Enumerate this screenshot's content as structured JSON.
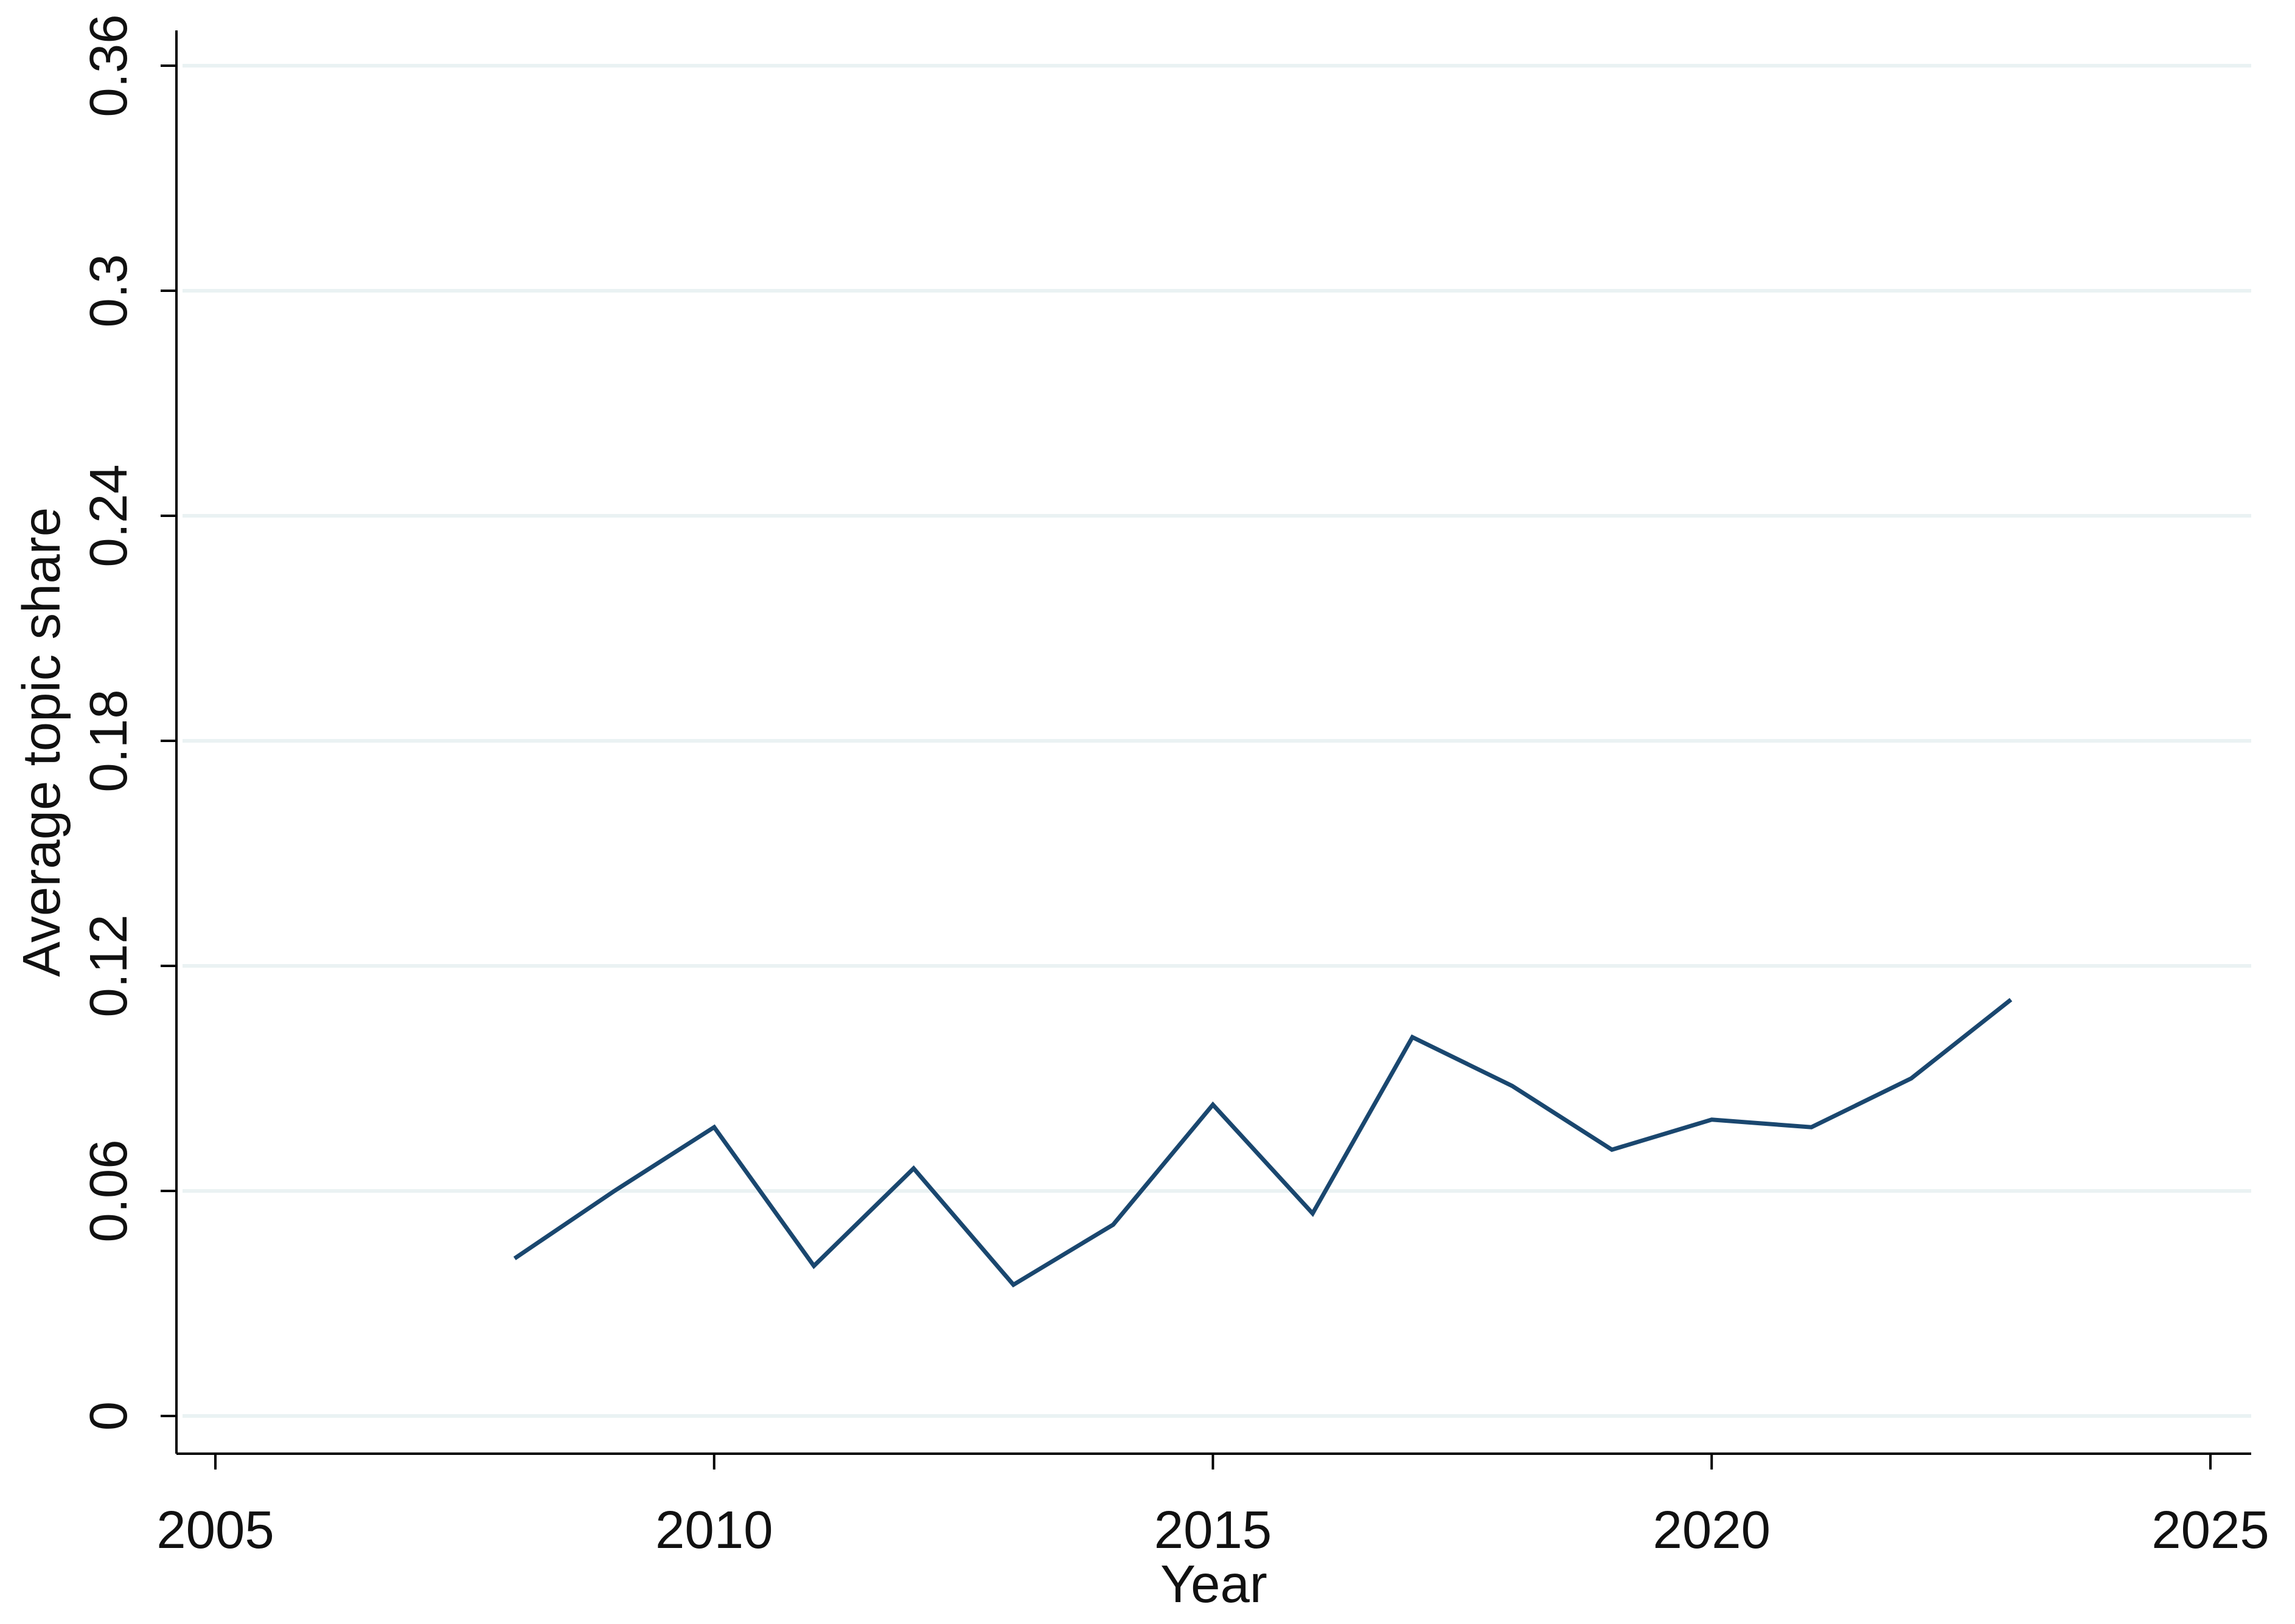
{
  "chart_data": {
    "type": "line",
    "title": "",
    "xlabel": "Year",
    "ylabel": "Average topic share",
    "xlim": [
      2005,
      2025
    ],
    "ylim": [
      0,
      0.36
    ],
    "x_ticks": [
      2005,
      2010,
      2015,
      2020,
      2025
    ],
    "y_ticks": [
      0,
      0.06,
      0.12,
      0.18,
      0.24,
      0.3,
      0.36
    ],
    "y_tick_labels": [
      "0",
      "0.06",
      "0.12",
      "0.18",
      "0.24",
      "0.3",
      "0.36"
    ],
    "grid": "horizontal",
    "legend": "none",
    "line_color": "#1a476f",
    "grid_color": "#eaf2f3",
    "series": [
      {
        "x": [
          2008,
          2009,
          2010,
          2011,
          2012,
          2013,
          2014,
          2015,
          2016,
          2017,
          2018,
          2019,
          2020,
          2021,
          2022,
          2023
        ],
        "values": [
          0.042,
          0.06,
          0.077,
          0.04,
          0.066,
          0.035,
          0.051,
          0.083,
          0.054,
          0.101,
          0.088,
          0.071,
          0.079,
          0.077,
          0.09,
          0.111
        ]
      }
    ]
  }
}
